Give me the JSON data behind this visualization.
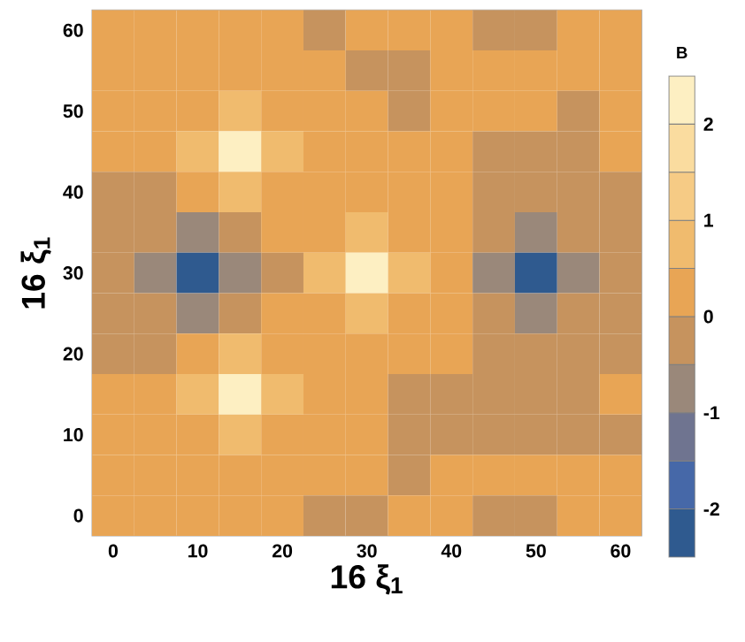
{
  "chart_data": {
    "type": "heatmap",
    "xlabel": "16 ξ$_{1}$",
    "ylabel": "16 ξ$_{1}$",
    "clabel": "B",
    "categories": [
      "0",
      null,
      "10",
      null,
      "20",
      null,
      "30",
      null,
      "40",
      null,
      "50",
      null,
      "60"
    ],
    "y_categories": [
      "60",
      null,
      "50",
      null,
      "40",
      null,
      "30",
      null,
      "20",
      null,
      "10",
      null,
      "0"
    ],
    "clim": [
      -2.5,
      2.5
    ],
    "cticks": [
      -2,
      -1,
      0,
      1,
      2
    ],
    "cells": [
      [
        0.25,
        0.25,
        0.25,
        0.25,
        0.25,
        -0.25,
        0.25,
        0.25,
        0.25,
        -0.25,
        -0.25,
        0.25,
        0.25
      ],
      [
        0.25,
        0.25,
        0.25,
        0.25,
        0.25,
        0.25,
        -0.25,
        -0.25,
        0.25,
        0.25,
        0.25,
        0.25,
        0.25
      ],
      [
        0.25,
        0.25,
        0.25,
        0.75,
        0.25,
        0.25,
        0.25,
        -0.25,
        0.25,
        0.25,
        0.25,
        -0.25,
        0.25
      ],
      [
        0.25,
        0.25,
        0.75,
        2.25,
        0.75,
        0.25,
        0.25,
        0.25,
        0.25,
        -0.25,
        -0.25,
        -0.25,
        0.25
      ],
      [
        -0.25,
        -0.25,
        0.25,
        0.75,
        0.25,
        0.25,
        0.25,
        0.25,
        0.25,
        -0.25,
        -0.25,
        -0.25,
        -0.25
      ],
      [
        -0.25,
        -0.25,
        -0.75,
        -0.25,
        0.25,
        0.25,
        0.75,
        0.25,
        0.25,
        -0.25,
        -0.75,
        -0.25,
        -0.25
      ],
      [
        -0.25,
        -0.75,
        -2.25,
        -0.75,
        -0.25,
        0.75,
        2.25,
        0.75,
        0.25,
        -0.75,
        -2.25,
        -0.75,
        -0.25
      ],
      [
        -0.25,
        -0.25,
        -0.75,
        -0.25,
        0.25,
        0.25,
        0.75,
        0.25,
        0.25,
        -0.25,
        -0.75,
        -0.25,
        -0.25
      ],
      [
        -0.25,
        -0.25,
        0.25,
        0.75,
        0.25,
        0.25,
        0.25,
        0.25,
        0.25,
        -0.25,
        -0.25,
        -0.25,
        -0.25
      ],
      [
        0.25,
        0.25,
        0.75,
        2.25,
        0.75,
        0.25,
        0.25,
        -0.25,
        -0.25,
        -0.25,
        -0.25,
        -0.25,
        0.25
      ],
      [
        0.25,
        0.25,
        0.25,
        0.75,
        0.25,
        0.25,
        0.25,
        -0.25,
        -0.25,
        -0.25,
        -0.25,
        -0.25,
        -0.25
      ],
      [
        0.25,
        0.25,
        0.25,
        0.25,
        0.25,
        0.25,
        0.25,
        -0.25,
        0.25,
        0.25,
        0.25,
        0.25,
        0.25
      ],
      [
        0.25,
        0.25,
        0.25,
        0.25,
        0.25,
        -0.25,
        -0.25,
        0.25,
        0.25,
        -0.25,
        -0.25,
        0.25,
        0.25
      ]
    ]
  }
}
